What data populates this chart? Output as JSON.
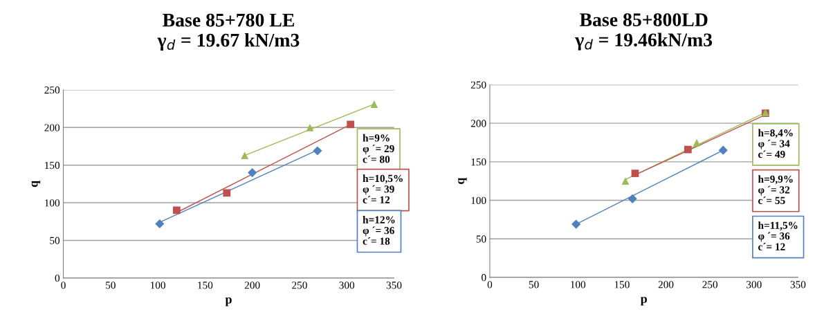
{
  "chart_data": [
    {
      "type": "scatter",
      "title": "Base 85+780 LE\nγ$_{d}$ = 19.67 kN/m3",
      "xlabel": "p",
      "ylabel": "q",
      "xlim": [
        0,
        350
      ],
      "xticks": [
        0,
        50,
        100,
        150,
        200,
        250,
        300,
        350
      ],
      "ylim": [
        0,
        250
      ],
      "yticks": [
        0,
        50,
        100,
        150,
        200,
        250
      ],
      "grid": "y",
      "series": [
        {
          "color": "#9bbb59",
          "marker": "triangle",
          "x": [
            192,
            261,
            329
          ],
          "values": [
            163,
            200,
            231
          ]
        },
        {
          "color": "#c0504d",
          "marker": "square",
          "x": [
            120,
            173,
            304
          ],
          "values": [
            90,
            113,
            204
          ]
        },
        {
          "color": "#4f81bd",
          "marker": "diamond",
          "x": [
            102,
            200,
            269
          ],
          "values": [
            72,
            140,
            169
          ]
        },
        {
          "type": "line",
          "color": "#9bbb59",
          "marker": "none",
          "x": [
            192,
            329
          ],
          "values": [
            163,
            231
          ]
        },
        {
          "type": "line",
          "color": "#c0504d",
          "marker": "none",
          "x": [
            120,
            304
          ],
          "values": [
            87,
            204
          ]
        },
        {
          "type": "line",
          "color": "#4f81bd",
          "marker": "none",
          "x": [
            102,
            269
          ],
          "values": [
            74,
            170
          ]
        }
      ],
      "annotations": [
        "h=9%\nφ ´= 29\nc´= 80",
        "h=10,5%\nφ ´= 39\nc´= 12",
        "h=12%\nφ ´= 36\nc´= 18"
      ]
    },
    {
      "type": "scatter",
      "title": "Base 85+800LD\nγ$_{d}$ = 19.46kN/m3",
      "xlabel": "p",
      "ylabel": "q",
      "xlim": [
        0,
        350
      ],
      "xticks": [
        0,
        50,
        100,
        150,
        200,
        250,
        300,
        350
      ],
      "ylim": [
        0,
        250
      ],
      "yticks": [
        0,
        50,
        100,
        150,
        200,
        250
      ],
      "grid": "y",
      "series": [
        {
          "color": "#9bbb59",
          "marker": "triangle",
          "x": [
            154,
            235,
            313
          ],
          "values": [
            125,
            175,
            214
          ]
        },
        {
          "color": "#c0504d",
          "marker": "square",
          "x": [
            165,
            225,
            313
          ],
          "values": [
            135,
            166,
            213
          ]
        },
        {
          "color": "#4f81bd",
          "marker": "diamond",
          "x": [
            98,
            162,
            265
          ],
          "values": [
            69,
            102,
            165
          ]
        },
        {
          "type": "line",
          "color": "#9bbb59",
          "marker": "none",
          "x": [
            154,
            313
          ],
          "values": [
            127,
            214
          ]
        },
        {
          "type": "line",
          "color": "#c0504d",
          "marker": "none",
          "x": [
            165,
            313
          ],
          "values": [
            133,
            211
          ]
        },
        {
          "type": "line",
          "color": "#4f81bd",
          "marker": "none",
          "x": [
            98,
            265
          ],
          "values": [
            69,
            165
          ]
        }
      ],
      "annotations": [
        "h=8,4%\nφ ´= 34\nc´= 49",
        "h=9,9%\nφ ´= 32\nc´= 55",
        "h=11,5%\nφ ´= 36\nc´= 12"
      ]
    }
  ]
}
